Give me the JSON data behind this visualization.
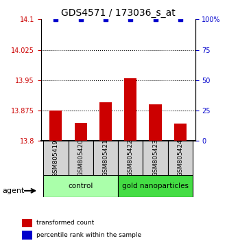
{
  "title": "GDS4571 / 173036_s_at",
  "categories": [
    "GSM805419",
    "GSM805420",
    "GSM805421",
    "GSM805422",
    "GSM805423",
    "GSM805424"
  ],
  "bar_values": [
    13.875,
    13.845,
    13.895,
    13.955,
    13.89,
    13.843
  ],
  "percentile_values": [
    100,
    100,
    100,
    100,
    100,
    100
  ],
  "bar_color": "#cc0000",
  "percentile_color": "#0000cc",
  "ylim_left": [
    13.8,
    14.1
  ],
  "ylim_right": [
    0,
    100
  ],
  "yticks_left": [
    13.8,
    13.875,
    13.95,
    14.025,
    14.1
  ],
  "ytick_labels_left": [
    "13.8",
    "13.875",
    "13.95",
    "14.025",
    "14.1"
  ],
  "yticks_right": [
    0,
    25,
    50,
    75,
    100
  ],
  "ytick_labels_right": [
    "0",
    "25",
    "50",
    "75",
    "100%"
  ],
  "groups": [
    {
      "label": "control",
      "indices": [
        0,
        1,
        2
      ],
      "color": "#aaffaa"
    },
    {
      "label": "gold nanoparticles",
      "indices": [
        3,
        4,
        5
      ],
      "color": "#44dd44"
    }
  ],
  "agent_label": "agent",
  "legend_items": [
    {
      "label": "transformed count",
      "color": "#cc0000"
    },
    {
      "label": "percentile rank within the sample",
      "color": "#0000cc"
    }
  ],
  "grid_dotted": true,
  "bar_width": 0.5,
  "background_color": "#ffffff"
}
